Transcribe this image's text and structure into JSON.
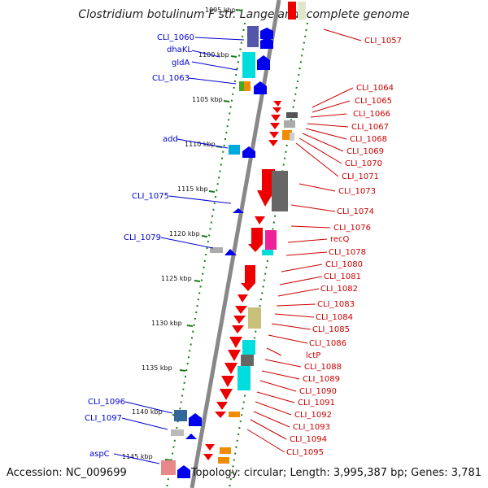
{
  "title": "Clostridium botulinum F str. Langeland, complete genome",
  "footer": {
    "accession": "Accession: NC_009699",
    "summary": "Topology: circular; Length: 3,995,387 bp; Genes: 3,781"
  },
  "axis": {
    "ticks": [
      "1095 kbp",
      "1100 kbp",
      "1105 kbp",
      "1110 kbp",
      "1115 kbp",
      "1120 kbp",
      "1125 kbp",
      "1130 kbp",
      "1135 kbp",
      "1140 kbp",
      "1145 kbp"
    ]
  },
  "colors": {
    "left_label": "#0000cc",
    "right_label": "#cc0000",
    "backbone": "#888888",
    "track_dots": "#1a7a1a"
  },
  "left_labels": [
    "CLI_1060",
    "dhaKL",
    "gldA",
    "CLI_1063",
    "add",
    "CLI_1075",
    "CLI_1079",
    "CLI_1096",
    "CLI_1097",
    "aspC"
  ],
  "right_labels": [
    "CLI_1057",
    "CLI_1064",
    "CLI_1065",
    "CLI_1066",
    "CLI_1067",
    "CLI_1068",
    "CLI_1069",
    "CLI_1070",
    "CLI_1071",
    "CLI_1073",
    "CLI_1074",
    "CLI_1076",
    "recQ",
    "CLI_1078",
    "CLI_1080",
    "CLI_1081",
    "CLI_1082",
    "CLI_1083",
    "CLI_1084",
    "CLI_1085",
    "CLI_1086",
    "lctP",
    "CLI_1088",
    "CLI_1089",
    "CLI_1090",
    "CLI_1091",
    "CLI_1092",
    "CLI_1093",
    "CLI_1094",
    "CLI_1095"
  ]
}
